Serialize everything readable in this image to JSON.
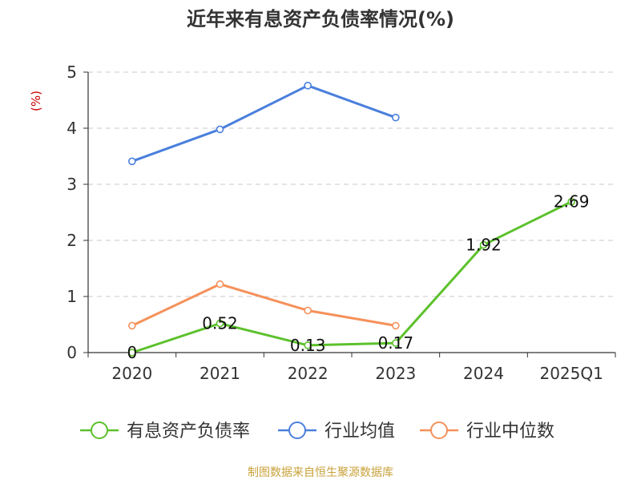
{
  "chart_data": {
    "type": "line",
    "title": "近年来有息资产负债率情况(%)",
    "ylabel": "(%)",
    "ylim": [
      0,
      5
    ],
    "yticks": [
      0,
      1,
      2,
      3,
      4,
      5
    ],
    "grid": true,
    "legend_position": "bottom",
    "categories": [
      "2020",
      "2021",
      "2022",
      "2023",
      "2024",
      "2025Q1"
    ],
    "series": [
      {
        "name": "有息资产负债率",
        "color": "#5cc12c",
        "values": [
          0,
          0.52,
          0.13,
          0.17,
          1.92,
          2.69
        ],
        "labels": [
          "0",
          "0.52",
          "0.13",
          "0.17",
          "1.92",
          "2.69"
        ]
      },
      {
        "name": "行业均值",
        "color": "#4a7fdc",
        "values": [
          3.41,
          3.98,
          4.76,
          4.19,
          null,
          null
        ],
        "labels": null
      },
      {
        "name": "行业中位数",
        "color": "#f5915a",
        "values": [
          0.48,
          1.22,
          0.75,
          0.48,
          null,
          null
        ],
        "labels": null
      }
    ]
  },
  "footer": {
    "source": "制图数据来自恒生聚源数据库"
  }
}
